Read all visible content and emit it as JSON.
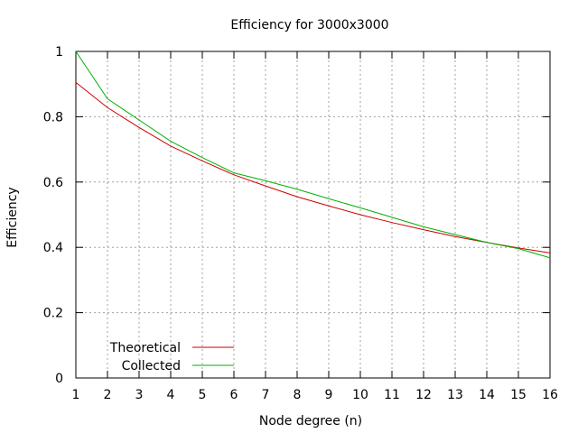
{
  "chart_data": {
    "type": "line",
    "title": "Efficiency for 3000x3000",
    "xlabel": "Node degree (n)",
    "ylabel": "Efficiency",
    "xlim": [
      1,
      16
    ],
    "ylim": [
      0,
      1
    ],
    "x_ticks": [
      1,
      2,
      3,
      4,
      5,
      6,
      7,
      8,
      9,
      10,
      11,
      12,
      13,
      14,
      15,
      16
    ],
    "y_ticks": [
      0,
      0.2,
      0.4,
      0.6,
      0.8,
      1
    ],
    "y_tick_labels": [
      "0",
      "0.2",
      "0.4",
      "0.6",
      "0.8",
      "1"
    ],
    "grid": true,
    "legend_position": "bottom-left",
    "x": [
      1,
      2,
      3,
      4,
      5,
      6,
      7,
      8,
      9,
      10,
      11,
      12,
      13,
      14,
      15,
      16
    ],
    "series": [
      {
        "name": "Theoretical",
        "color": "#cc0000",
        "values": [
          0.905,
          0.828,
          0.767,
          0.71,
          0.665,
          0.622,
          0.588,
          0.555,
          0.527,
          0.5,
          0.476,
          0.454,
          0.433,
          0.415,
          0.398,
          0.383
        ]
      },
      {
        "name": "Collected",
        "color": "#00b000",
        "values": [
          1.0,
          0.855,
          0.79,
          0.725,
          0.675,
          0.628,
          0.604,
          0.578,
          0.549,
          0.521,
          0.492,
          0.463,
          0.439,
          0.415,
          0.396,
          0.368
        ]
      }
    ]
  }
}
